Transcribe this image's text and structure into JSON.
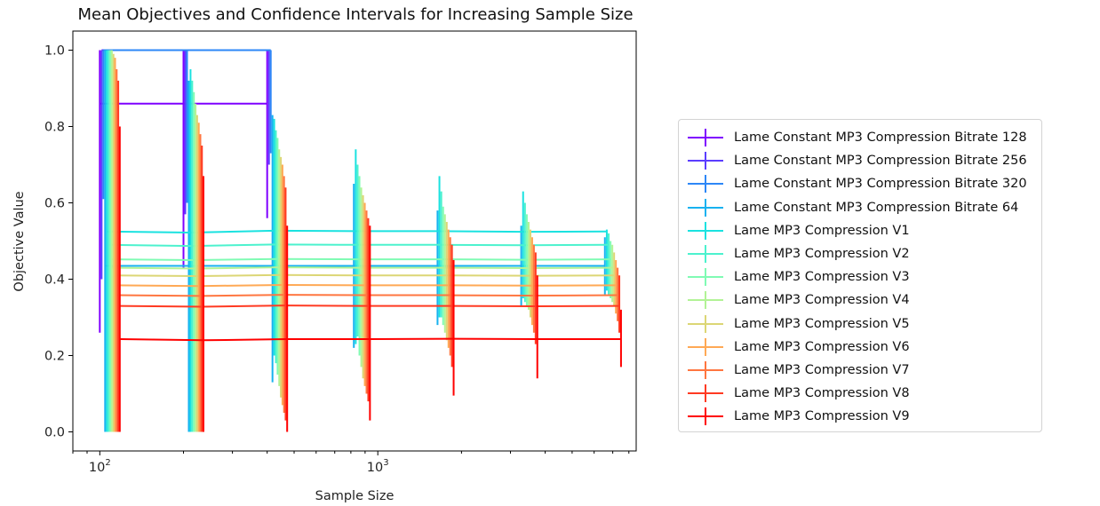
{
  "chart_data": {
    "type": "line",
    "title": "Mean Objectives and Confidence Intervals for Increasing Sample Size",
    "xlabel": "Sample Size",
    "ylabel": "Objective Value",
    "xscale": "log",
    "xlim": [
      80,
      8500
    ],
    "ylim": [
      -0.05,
      1.05
    ],
    "y_ticks": [
      "0.0",
      "0.2",
      "0.4",
      "0.6",
      "0.8",
      "1.0"
    ],
    "x_tick_labels": [
      {
        "base": "10",
        "exp": "2"
      },
      {
        "base": "10",
        "exp": "3"
      }
    ],
    "grid": false,
    "legend_position": "right",
    "series": [
      {
        "name": "Lame Constant MP3 Compression Bitrate 128",
        "color": "#7f00ff",
        "x": [
          100,
          200,
          400
        ],
        "y": [
          0.86,
          0.86,
          0.86
        ],
        "err_low": [
          0.26,
          0.43,
          0.56
        ],
        "err_high": [
          1.0,
          1.0,
          1.0
        ]
      },
      {
        "name": "Lame Constant MP3 Compression Bitrate 256",
        "color": "#5b3dff",
        "x": [
          101.5,
          203,
          406
        ],
        "y": [
          1.0,
          1.0,
          1.0
        ],
        "err_low": [
          0.4,
          0.57,
          0.7
        ],
        "err_high": [
          1.0,
          1.0,
          1.0
        ]
      },
      {
        "name": "Lame Constant MP3 Compression Bitrate 320",
        "color": "#2d87f7",
        "x": [
          103,
          206,
          412
        ],
        "y": [
          1.0,
          1.0,
          1.0
        ],
        "err_low": [
          0.61,
          0.6,
          0.73
        ],
        "err_high": [
          1.0,
          1.0,
          1.0
        ]
      },
      {
        "name": "Lame Constant MP3 Compression Bitrate 64",
        "color": "#18b2f0",
        "x": [
          104.5,
          209,
          418,
          820,
          1640,
          3280,
          6560
        ],
        "y": [
          0.435,
          0.435,
          0.435,
          0.435,
          0.435,
          0.435,
          0.435
        ],
        "err_low": [
          0.0,
          0.0,
          0.13,
          0.22,
          0.28,
          0.33,
          0.36
        ],
        "err_high": [
          1.0,
          0.92,
          0.83,
          0.65,
          0.58,
          0.54,
          0.51
        ]
      },
      {
        "name": "Lame MP3 Compression V1",
        "color": "#1ae2e0",
        "x": [
          106,
          212,
          424,
          833,
          1666,
          3332,
          6664
        ],
        "y": [
          0.525,
          0.522,
          0.527,
          0.526,
          0.526,
          0.524,
          0.525
        ],
        "err_low": [
          0.0,
          0.0,
          0.2,
          0.23,
          0.3,
          0.35,
          0.37
        ],
        "err_high": [
          1.0,
          0.95,
          0.82,
          0.74,
          0.67,
          0.63,
          0.53
        ]
      },
      {
        "name": "Lame MP3 Compression V2",
        "color": "#4cf2ce",
        "x": [
          107.5,
          215,
          430,
          846,
          1692,
          3384,
          6768
        ],
        "y": [
          0.49,
          0.487,
          0.491,
          0.49,
          0.49,
          0.489,
          0.49
        ],
        "err_low": [
          0.0,
          0.0,
          0.18,
          0.25,
          0.3,
          0.34,
          0.36
        ],
        "err_high": [
          1.0,
          0.92,
          0.79,
          0.7,
          0.63,
          0.6,
          0.52
        ]
      },
      {
        "name": "Lame MP3 Compression V3",
        "color": "#80fbb4",
        "x": [
          109,
          218,
          436,
          859,
          1718,
          3436,
          6872
        ],
        "y": [
          0.452,
          0.45,
          0.453,
          0.452,
          0.452,
          0.451,
          0.452
        ],
        "err_low": [
          0.0,
          0.0,
          0.15,
          0.2,
          0.28,
          0.33,
          0.35
        ],
        "err_high": [
          1.0,
          0.89,
          0.77,
          0.67,
          0.59,
          0.57,
          0.5
        ]
      },
      {
        "name": "Lame MP3 Compression V4",
        "color": "#b2f396",
        "x": [
          110.5,
          221,
          442,
          872,
          1744,
          3488,
          6976
        ],
        "y": [
          0.43,
          0.428,
          0.431,
          0.43,
          0.43,
          0.429,
          0.43
        ],
        "err_low": [
          0.0,
          0.0,
          0.12,
          0.17,
          0.26,
          0.32,
          0.34
        ],
        "err_high": [
          1.0,
          0.86,
          0.74,
          0.64,
          0.57,
          0.55,
          0.49
        ]
      },
      {
        "name": "Lame MP3 Compression V5",
        "color": "#dcd675",
        "x": [
          112,
          224,
          448,
          885,
          1770,
          3540,
          7080
        ],
        "y": [
          0.41,
          0.408,
          0.411,
          0.41,
          0.41,
          0.409,
          0.41
        ],
        "err_low": [
          0.0,
          0.0,
          0.09,
          0.14,
          0.24,
          0.3,
          0.33
        ],
        "err_high": [
          0.99,
          0.83,
          0.72,
          0.62,
          0.55,
          0.53,
          0.47
        ]
      },
      {
        "name": "Lame MP3 Compression V6",
        "color": "#ffa955",
        "x": [
          113.5,
          227,
          454,
          898,
          1796,
          3592,
          7184
        ],
        "y": [
          0.384,
          0.382,
          0.385,
          0.384,
          0.384,
          0.383,
          0.384
        ],
        "err_low": [
          0.0,
          0.0,
          0.07,
          0.12,
          0.22,
          0.28,
          0.31
        ],
        "err_high": [
          0.98,
          0.81,
          0.7,
          0.6,
          0.53,
          0.51,
          0.45
        ]
      },
      {
        "name": "Lame MP3 Compression V7",
        "color": "#ff7640",
        "x": [
          115,
          230,
          460,
          911,
          1822,
          3644,
          7288
        ],
        "y": [
          0.358,
          0.356,
          0.359,
          0.358,
          0.358,
          0.357,
          0.358
        ],
        "err_low": [
          0.0,
          0.0,
          0.05,
          0.1,
          0.2,
          0.26,
          0.29
        ],
        "err_high": [
          0.95,
          0.78,
          0.67,
          0.58,
          0.51,
          0.49,
          0.43
        ]
      },
      {
        "name": "Lame MP3 Compression V8",
        "color": "#ff3a22",
        "x": [
          116.5,
          233,
          466,
          924,
          1848,
          3696,
          7392
        ],
        "y": [
          0.33,
          0.328,
          0.331,
          0.33,
          0.33,
          0.329,
          0.33
        ],
        "err_low": [
          0.0,
          0.0,
          0.03,
          0.08,
          0.17,
          0.23,
          0.26
        ],
        "err_high": [
          0.92,
          0.75,
          0.64,
          0.56,
          0.49,
          0.47,
          0.41
        ]
      },
      {
        "name": "Lame MP3 Compression V9",
        "color": "#ff0000",
        "x": [
          118,
          236,
          472,
          937,
          1874,
          3748,
          7496
        ],
        "y": [
          0.243,
          0.24,
          0.243,
          0.243,
          0.244,
          0.243,
          0.243
        ],
        "err_low": [
          0.0,
          0.0,
          0.0,
          0.03,
          0.095,
          0.14,
          0.17
        ],
        "err_high": [
          0.8,
          0.67,
          0.54,
          0.54,
          0.45,
          0.41,
          0.32
        ]
      }
    ]
  }
}
